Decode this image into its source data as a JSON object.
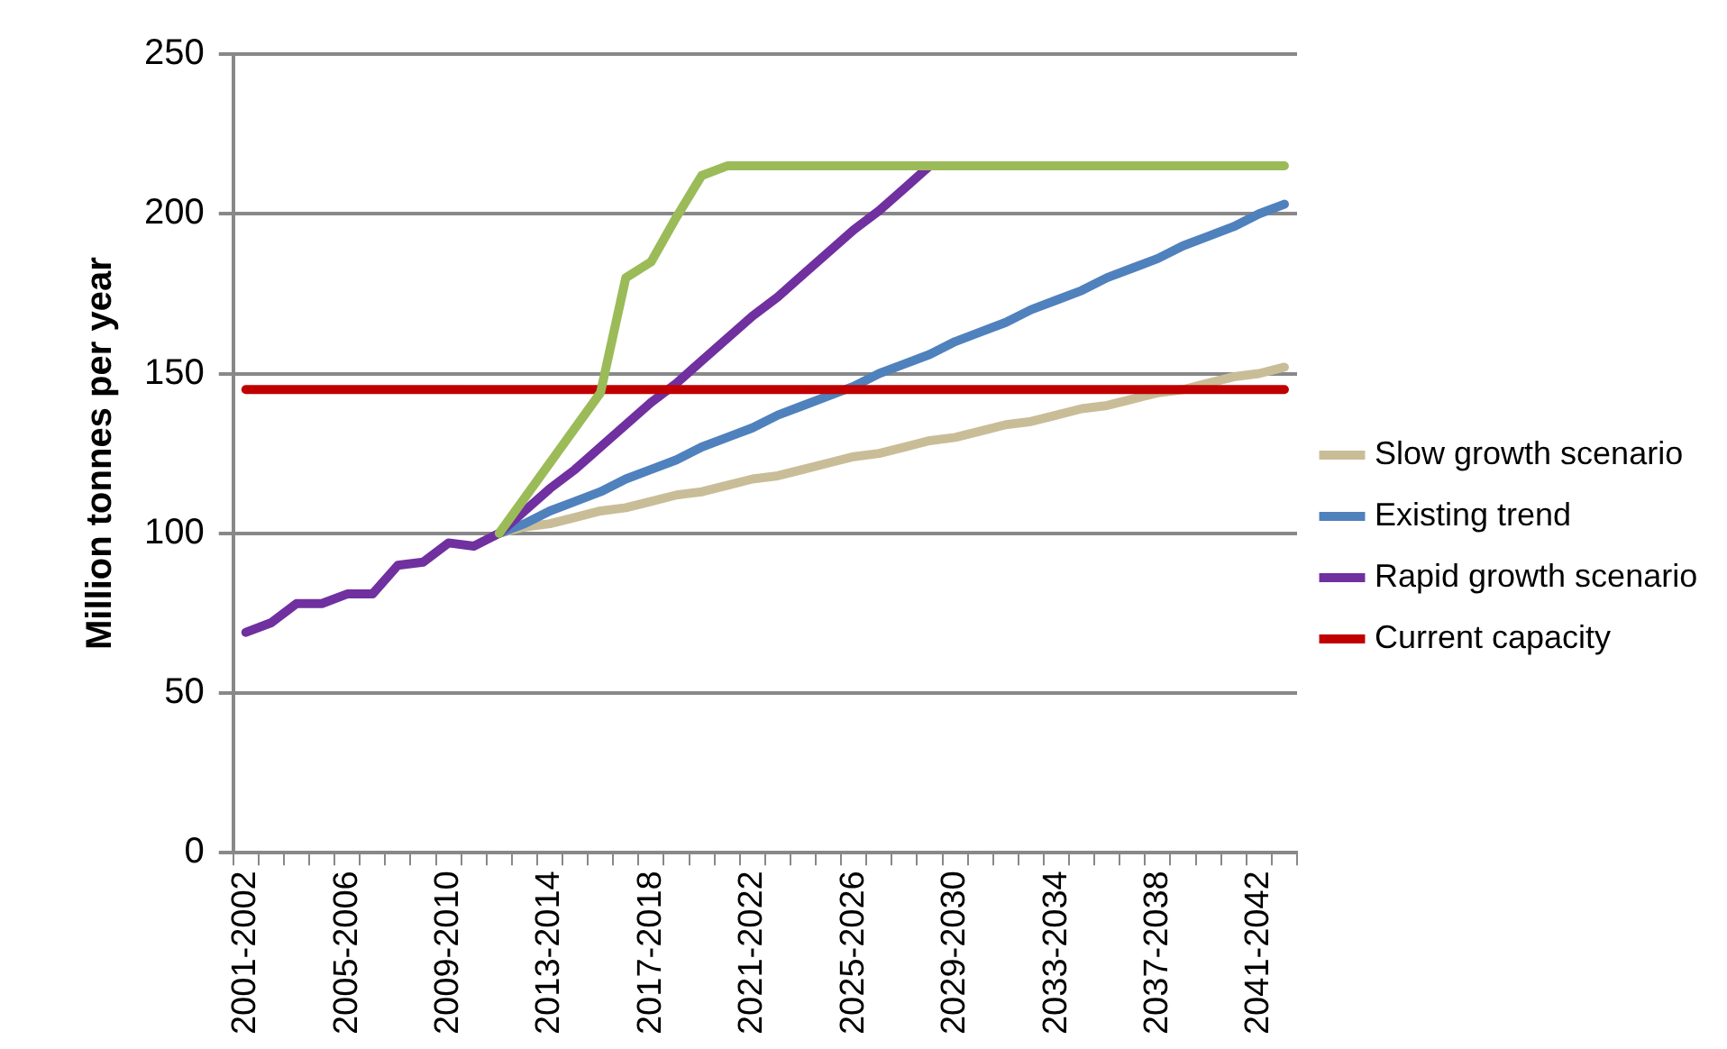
{
  "chart_data": {
    "type": "line",
    "ylabel": "Million tonnes per year",
    "categories": [
      "2001-2002",
      null,
      null,
      null,
      "2005-2006",
      null,
      null,
      null,
      "2009-2010",
      null,
      null,
      null,
      "2013-2014",
      null,
      null,
      null,
      "2017-2018",
      null,
      null,
      null,
      "2021-2022",
      null,
      null,
      null,
      "2025-2026",
      null,
      null,
      null,
      "2029-2030",
      null,
      null,
      null,
      "2033-2034",
      null,
      null,
      null,
      "2037-2038",
      null,
      null,
      null,
      "2041-2042",
      null
    ],
    "series": [
      {
        "name": "Slow growth scenario",
        "color": "#c9bd98",
        "values": [
          null,
          null,
          null,
          null,
          null,
          null,
          null,
          null,
          null,
          null,
          100,
          102,
          103,
          105,
          107,
          108,
          110,
          112,
          113,
          115,
          117,
          118,
          120,
          122,
          124,
          125,
          127,
          129,
          130,
          132,
          134,
          135,
          137,
          139,
          140,
          142,
          144,
          145,
          147,
          149,
          150,
          152
        ]
      },
      {
        "name": "Existing trend",
        "color": "#4f81bd",
        "values": [
          null,
          null,
          null,
          null,
          null,
          null,
          null,
          null,
          null,
          null,
          100,
          103,
          107,
          110,
          113,
          117,
          120,
          123,
          127,
          130,
          133,
          137,
          140,
          143,
          146,
          150,
          153,
          156,
          160,
          163,
          166,
          170,
          173,
          176,
          180,
          183,
          186,
          190,
          193,
          196,
          200,
          203
        ]
      },
      {
        "name": "Rapid growth scenario",
        "color": "#7030a0",
        "values": [
          69,
          72,
          78,
          78,
          81,
          81,
          90,
          91,
          97,
          96,
          100,
          107,
          114,
          120,
          127,
          134,
          141,
          147,
          154,
          161,
          168,
          174,
          181,
          188,
          195,
          201,
          208,
          215,
          null,
          null,
          null,
          null,
          null,
          null,
          null,
          null,
          null,
          null,
          null,
          null,
          null,
          null
        ]
      },
      {
        "name": "Current capacity",
        "color": "#c00000",
        "values": [
          145,
          145,
          145,
          145,
          145,
          145,
          145,
          145,
          145,
          145,
          145,
          145,
          145,
          145,
          145,
          145,
          145,
          145,
          145,
          145,
          145,
          145,
          145,
          145,
          145,
          145,
          145,
          145,
          145,
          145,
          145,
          145,
          145,
          145,
          145,
          145,
          145,
          145,
          145,
          145,
          145,
          145
        ]
      },
      {
        "color": "#9bbb59",
        "values": [
          null,
          null,
          null,
          null,
          null,
          null,
          null,
          null,
          null,
          null,
          100,
          111,
          122,
          133,
          144,
          180,
          185,
          199,
          212,
          215,
          215,
          215,
          215,
          215,
          215,
          215,
          215,
          215,
          215,
          215,
          215,
          215,
          215,
          215,
          215,
          215,
          215,
          215,
          215,
          215,
          215,
          215
        ]
      }
    ],
    "ylim": [
      0,
      250
    ],
    "yticks": [
      0,
      50,
      100,
      150,
      200,
      250
    ],
    "grid": "y",
    "legend": "right",
    "marker": "none",
    "line_style": "solid"
  }
}
